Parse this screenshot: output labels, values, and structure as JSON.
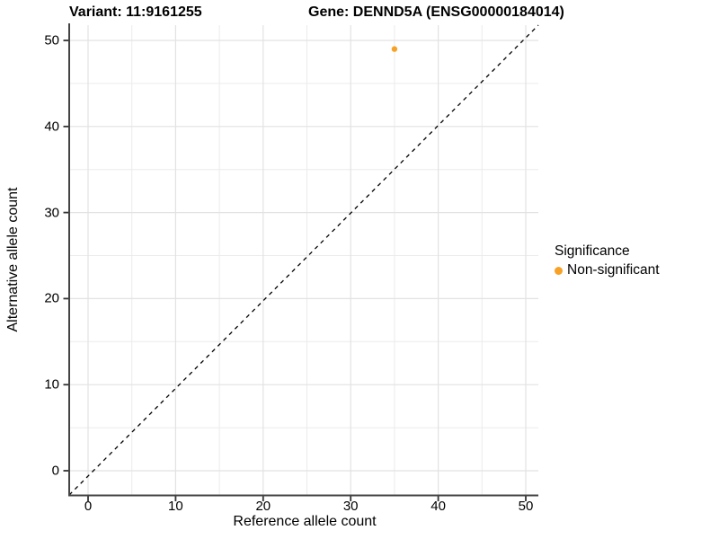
{
  "titles": {
    "variant": "Variant: 11:9161255",
    "gene": "Gene: DENND5A (ENSG00000184014)"
  },
  "chart_data": {
    "type": "scatter",
    "xlabel": "Reference allele count",
    "ylabel": "Alternative allele count",
    "xticks": [
      0,
      10,
      20,
      30,
      40,
      50
    ],
    "yticks": [
      0,
      10,
      20,
      30,
      40,
      50
    ],
    "xminor": [
      5,
      15,
      25,
      35,
      45
    ],
    "yminor": [
      5,
      15,
      25,
      35,
      45
    ],
    "xlim": [
      -2.2,
      51.6
    ],
    "ylim": [
      -2.8,
      51.8
    ],
    "grid": true,
    "series": [
      {
        "name": "Non-significant",
        "color": "#F7A227",
        "points": [
          {
            "x": 35,
            "y": 49
          }
        ]
      }
    ],
    "reference_line": {
      "slope": 1,
      "intercept": 0,
      "style": "dashed",
      "color": "#000000"
    },
    "legend": {
      "title": "Significance",
      "position": "right",
      "items": [
        {
          "label": "Non-significant",
          "color": "#F7A227"
        }
      ]
    },
    "colors": {
      "grid_major": "#E2E2E2",
      "grid_minor": "#EBEBEB",
      "axis_line": "#444444",
      "tick_mark": "#333333"
    }
  }
}
